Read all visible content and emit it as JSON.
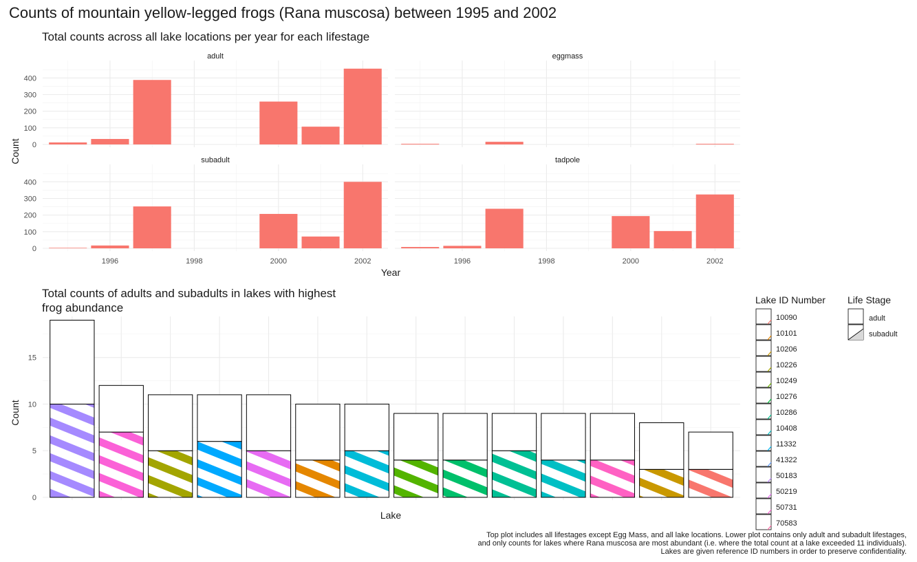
{
  "title": "Counts of mountain yellow-legged frogs (Rana muscosa) between 1995 and 2002",
  "caption": "Top plot includes all lifestages except Egg Mass, and all lake locations. Lower plot contains only adult and subadult lifestages,\nand only counts for lakes where Rana muscosa are most abundant (i.e. where the total count at a lake exceeded 11 individuals).\nLakes are given reference ID numbers in order to preserve confidentiality.",
  "chart_data": [
    {
      "type": "bar",
      "title": "Total counts across all lake locations per year for each lifestage",
      "xlabel": "Year",
      "ylabel": "Count",
      "x_ticks": [
        1996,
        1998,
        2000,
        2002
      ],
      "y_ticks": [
        0,
        100,
        200,
        300,
        400
      ],
      "ylim": [
        0,
        480
      ],
      "xlim": [
        1994.4,
        2002.6
      ],
      "bar_color": "#F8766D",
      "grid": true,
      "facets": [
        {
          "name": "adult",
          "x": [
            1995,
            1996,
            1997,
            2000,
            2001,
            2002
          ],
          "values": [
            12,
            33,
            388,
            258,
            107,
            456
          ]
        },
        {
          "name": "eggmass",
          "x": [
            1995,
            1997,
            2002
          ],
          "values": [
            4,
            16,
            4
          ]
        },
        {
          "name": "subadult",
          "x": [
            1995,
            1996,
            1997,
            2000,
            2001,
            2002
          ],
          "values": [
            3,
            17,
            252,
            207,
            71,
            400
          ]
        },
        {
          "name": "tadpole",
          "x": [
            1995,
            1996,
            1997,
            2000,
            2001,
            2002
          ],
          "values": [
            8,
            15,
            238,
            194,
            104,
            324
          ]
        }
      ]
    },
    {
      "type": "bar",
      "title": "Total counts of adults and subadults in lakes with highest frog abundance",
      "xlabel": "Lake",
      "ylabel": "Count",
      "y_ticks": [
        0,
        5,
        10,
        15
      ],
      "ylim": [
        0,
        19.4
      ],
      "stacked": true,
      "grid": true,
      "categories": [
        "10090",
        "10101",
        "10206",
        "10226",
        "10249",
        "10276",
        "10286",
        "10408",
        "11332",
        "41322",
        "50183",
        "50219",
        "50731",
        "70583"
      ],
      "series": [
        {
          "name": "subadult",
          "values": [
            10,
            7,
            5,
            6,
            5,
            4,
            5,
            4,
            4,
            5,
            4,
            4,
            3,
            3
          ]
        },
        {
          "name": "adult",
          "values": [
            9,
            5,
            6,
            5,
            6,
            6,
            5,
            5,
            5,
            4,
            5,
            5,
            5,
            4
          ]
        }
      ],
      "lake_colors": [
        "#A58AFF",
        "#FB61D7",
        "#A3A500",
        "#00A9FF",
        "#E76BF3",
        "#E58700",
        "#00BCD8",
        "#53B400",
        "#00C06B",
        "#00C094",
        "#00BFC4",
        "#FF61C3",
        "#C99800",
        "#F8766D"
      ],
      "legend": {
        "position": "right",
        "lake_title": "Lake ID Number",
        "stage_title": "Life Stage",
        "lakes": [
          "10090",
          "10101",
          "10206",
          "10226",
          "10249",
          "10276",
          "10286",
          "10408",
          "11332",
          "41322",
          "50183",
          "50219",
          "50731",
          "70583"
        ],
        "legend_colors": [
          "#F8766D",
          "#E58700",
          "#C99800",
          "#A3A500",
          "#6BB100",
          "#00BA38",
          "#00C08B",
          "#00BFC4",
          "#00B4EF",
          "#619CFF",
          "#B983FF",
          "#E76BF3",
          "#FD61D1",
          "#FF67A4"
        ],
        "stages": [
          "adult",
          "subadult"
        ]
      }
    }
  ]
}
